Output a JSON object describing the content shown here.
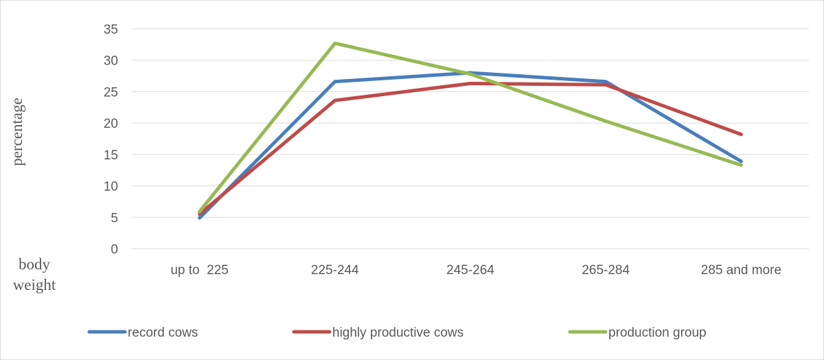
{
  "chart_data": {
    "type": "line",
    "title": "",
    "ylabel": "percentage",
    "xlabel": "body weight",
    "xlabel_lines": [
      "body",
      "weight"
    ],
    "categories": [
      "up to  225",
      "225-244",
      "245-264",
      "265-284",
      "285 and more"
    ],
    "ylim": [
      0,
      35
    ],
    "yticks": [
      0,
      5,
      10,
      15,
      20,
      25,
      30,
      35
    ],
    "grid": true,
    "legend_position": "bottom",
    "series": [
      {
        "name": "record cows",
        "color": "#4a7ebb",
        "values": [
          4.9,
          26.6,
          28.0,
          26.6,
          13.9
        ]
      },
      {
        "name": "highly productive cows",
        "color": "#be4b48",
        "values": [
          5.5,
          23.6,
          26.3,
          26.1,
          18.2
        ]
      },
      {
        "name": "production group",
        "color": "#98b954",
        "values": [
          5.9,
          32.7,
          27.8,
          20.3,
          13.3
        ]
      }
    ]
  }
}
